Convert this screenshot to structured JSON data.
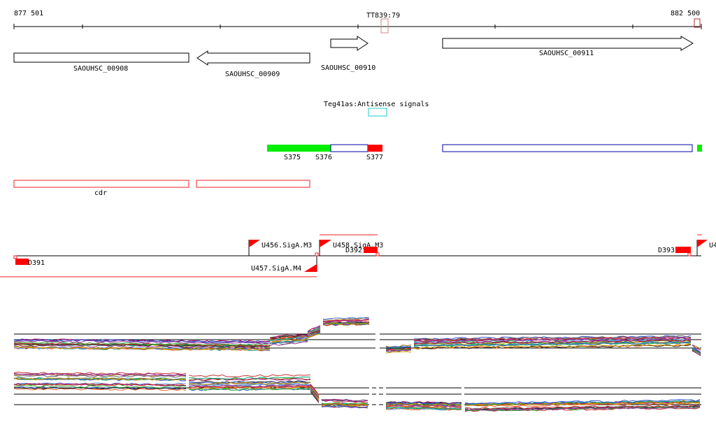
{
  "ruler": {
    "start": "877 501",
    "end": "882 500",
    "marker": "TT839:79"
  },
  "genes": [
    {
      "id": "SAOUHSC_00908",
      "strand": "none"
    },
    {
      "id": "SAOUHSC_00909",
      "strand": "minus"
    },
    {
      "id": "SAOUHSC_00910",
      "strand": "plus"
    },
    {
      "id": "SAOUHSC_00911",
      "strand": "plus"
    }
  ],
  "antisense": {
    "label": "Teg41as:Antisense signals"
  },
  "segments": [
    {
      "label": "S375",
      "color": "#00ee00"
    },
    {
      "label": "S376",
      "color": "#00ee00"
    },
    {
      "label": "S377",
      "color": "#ff0000"
    }
  ],
  "cdr": {
    "label": "cdr"
  },
  "promoters": [
    {
      "label": "U456.SigA.M3"
    },
    {
      "label": "U457.SigA.M4"
    },
    {
      "label": "U458.SigA.M3"
    },
    {
      "label": "U4"
    }
  ],
  "terminators": [
    {
      "label": "D391"
    },
    {
      "label": "D392"
    },
    {
      "label": "D393"
    }
  ],
  "colors": {
    "gene_outline": "#000000",
    "feature_red": "#ff0000",
    "feature_green": "#00ee00",
    "cds_blue": "#0000aa",
    "antisense_cyan": "#22cccc",
    "marker_pink": "#cc8888"
  },
  "tracks": [
    {
      "name": "expression-track-top"
    },
    {
      "name": "expression-track-bottom"
    }
  ]
}
